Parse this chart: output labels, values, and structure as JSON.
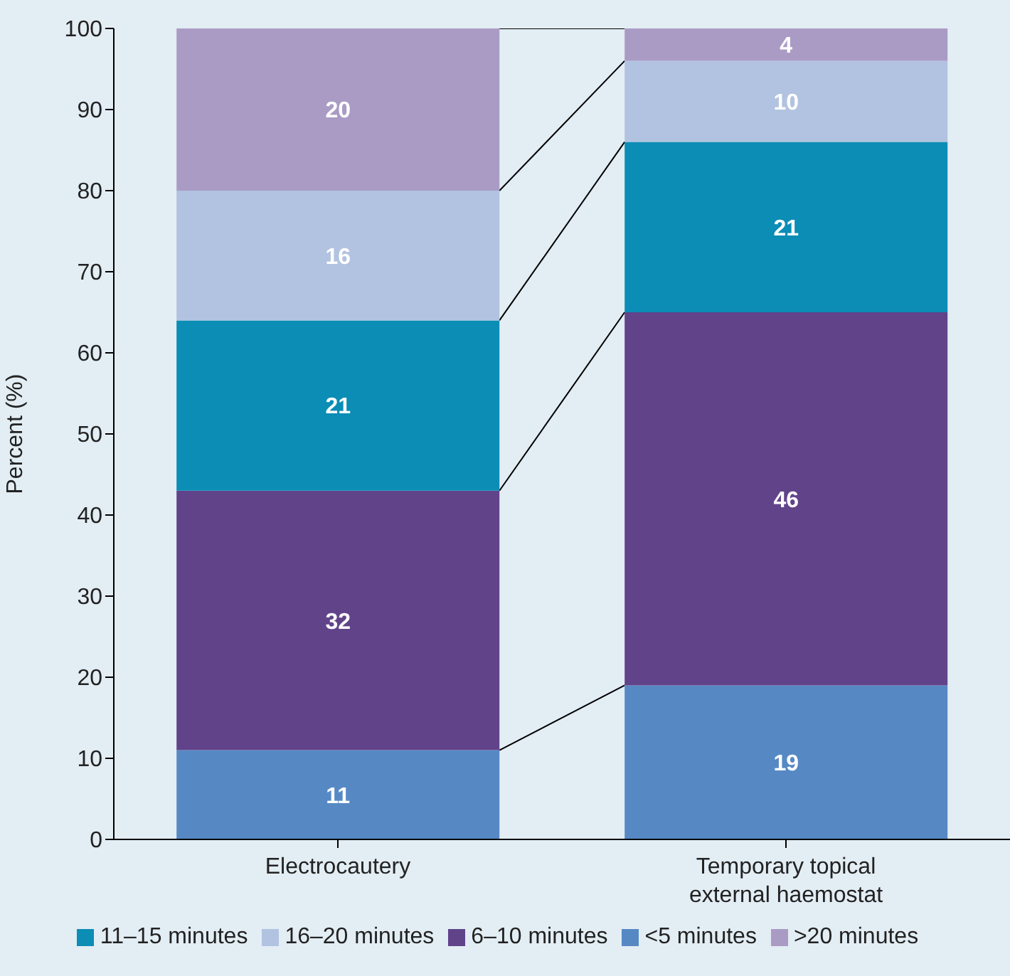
{
  "chart_data": {
    "type": "bar",
    "stacked": true,
    "ylabel": "Percent (%)",
    "categories": [
      "Electrocautery",
      "Temporary topical external haemostat"
    ],
    "ylim": [
      0,
      100
    ],
    "yticks": [
      0,
      10,
      20,
      30,
      40,
      50,
      60,
      70,
      80,
      90,
      100
    ],
    "data_labels": true,
    "legend": "bottom",
    "series": [
      {
        "name": "<5 minutes",
        "color": "#5689c4",
        "values": [
          11,
          19
        ]
      },
      {
        "name": "6–10 minutes",
        "color": "#61438a",
        "values": [
          32,
          46
        ]
      },
      {
        "name": "11–15 minutes",
        "color": "#0b8db5",
        "values": [
          21,
          21
        ]
      },
      {
        "name": "16–20 minutes",
        "color": "#b1c3e0",
        "values": [
          16,
          10
        ]
      },
      {
        "name": ">20 minutes",
        "color": "#aa9bc5",
        "values": [
          20,
          4
        ]
      }
    ]
  }
}
